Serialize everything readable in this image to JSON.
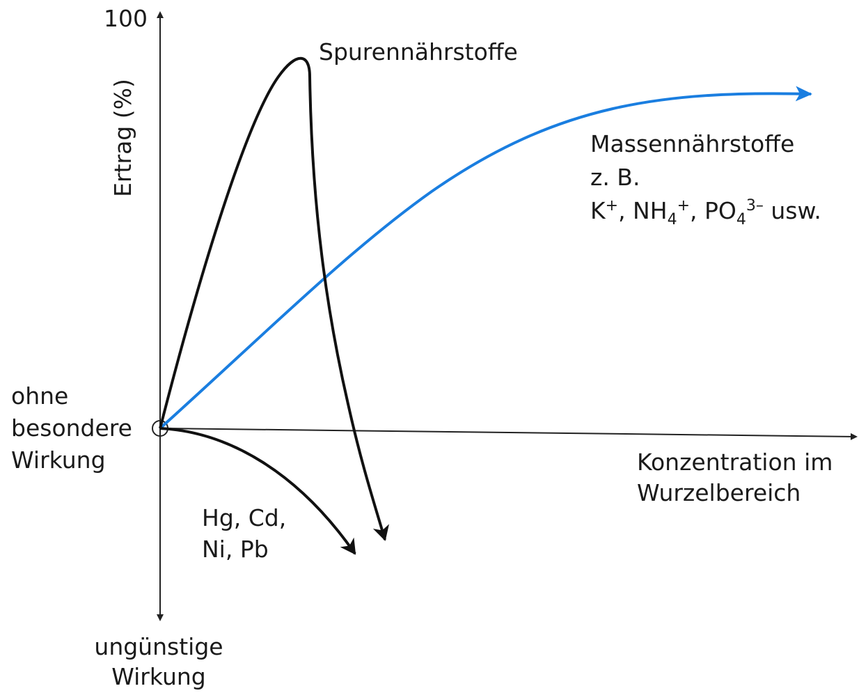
{
  "y_axis": {
    "label": "Ertrag (%)",
    "top_label": "100",
    "bottom_label": [
      "ungünstige",
      "Wirkung"
    ]
  },
  "origin_label": [
    "ohne",
    "besondere",
    "Wirkung"
  ],
  "x_axis": {
    "label": [
      "Konzentration im",
      "Wurzelbereich"
    ]
  },
  "curves": [
    {
      "label": [
        "Spurennährstoffe"
      ]
    },
    {
      "label": [
        "Massennährstoffe",
        "z. B."
      ],
      "ions": [
        "K",
        "+",
        ", NH",
        "4",
        "+",
        ", PO",
        "4",
        "3–",
        " usw."
      ]
    },
    {
      "label": [
        "Hg, Cd,",
        "Ni, Pb"
      ]
    }
  ]
}
